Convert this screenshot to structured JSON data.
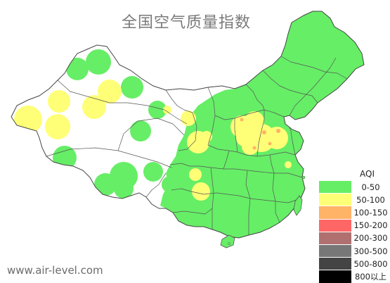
{
  "title": "全国空气质量指数",
  "watermark": "www.air-level.com",
  "legend": {
    "title": "AQI",
    "items": [
      {
        "label": "0-50",
        "color": "#66ee66"
      },
      {
        "label": "50-100",
        "color": "#ffff77"
      },
      {
        "label": "100-150",
        "color": "#ffb366"
      },
      {
        "label": "150-200",
        "color": "#ff6666"
      },
      {
        "label": "200-300",
        "color": "#b07070"
      },
      {
        "label": "300-500",
        "color": "#777777"
      },
      {
        "label": "500-800",
        "color": "#444444"
      },
      {
        "label": "800以上",
        "color": "#000000"
      }
    ]
  },
  "colors": {
    "good": "#66ee66",
    "moderate": "#ffff77",
    "unhealthy_sensitive": "#ffb366",
    "land_no_data": "#ffffff",
    "border": "#555555"
  }
}
